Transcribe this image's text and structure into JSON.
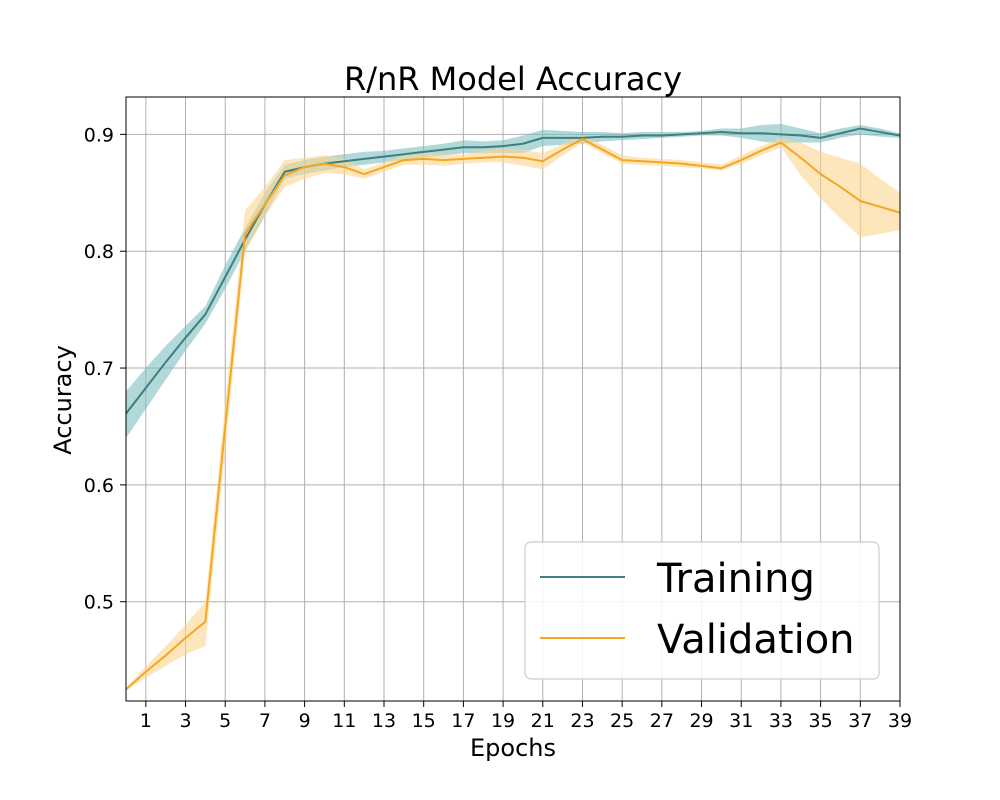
{
  "chart_data": {
    "type": "line",
    "title": "R/nR Model Accuracy",
    "xlabel": "Epochs",
    "ylabel": "Accuracy",
    "xlim": [
      0,
      39
    ],
    "ylim": [
      0.415,
      0.932
    ],
    "xticks": [
      1,
      3,
      5,
      7,
      9,
      11,
      13,
      15,
      17,
      19,
      21,
      23,
      25,
      27,
      29,
      31,
      33,
      35,
      37,
      39
    ],
    "yticks": [
      0.5,
      0.6,
      0.7,
      0.8,
      0.9
    ],
    "grid": true,
    "legend_position": "lower-right",
    "x": [
      0,
      1,
      2,
      3,
      4,
      5,
      6,
      7,
      8,
      9,
      10,
      11,
      12,
      13,
      14,
      15,
      16,
      17,
      18,
      19,
      20,
      21,
      22,
      23,
      24,
      25,
      26,
      27,
      28,
      29,
      30,
      31,
      32,
      33,
      34,
      35,
      36,
      37,
      38,
      39
    ],
    "series": [
      {
        "name": "Training",
        "color": "#3f7f7f",
        "band_color": "#7fbfbf",
        "values": [
          0.661,
          0.683,
          0.705,
          0.726,
          0.746,
          0.778,
          0.81,
          0.84,
          0.868,
          0.872,
          0.875,
          0.877,
          0.879,
          0.881,
          0.883,
          0.885,
          0.887,
          0.889,
          0.889,
          0.89,
          0.892,
          0.897,
          0.897,
          0.897,
          0.898,
          0.898,
          0.899,
          0.899,
          0.9,
          0.901,
          0.902,
          0.901,
          0.901,
          0.9,
          0.899,
          0.897,
          0.901,
          0.905,
          0.902,
          0.899
        ],
        "lower": [
          0.64,
          0.665,
          0.69,
          0.715,
          0.738,
          0.768,
          0.8,
          0.83,
          0.862,
          0.866,
          0.869,
          0.872,
          0.874,
          0.876,
          0.878,
          0.88,
          0.882,
          0.884,
          0.884,
          0.884,
          0.884,
          0.89,
          0.891,
          0.892,
          0.894,
          0.895,
          0.896,
          0.897,
          0.898,
          0.899,
          0.899,
          0.897,
          0.894,
          0.892,
          0.893,
          0.893,
          0.897,
          0.9,
          0.898,
          0.897
        ],
        "upper": [
          0.68,
          0.7,
          0.719,
          0.736,
          0.753,
          0.788,
          0.82,
          0.85,
          0.874,
          0.878,
          0.881,
          0.883,
          0.885,
          0.886,
          0.888,
          0.89,
          0.892,
          0.895,
          0.894,
          0.895,
          0.899,
          0.904,
          0.903,
          0.902,
          0.902,
          0.901,
          0.902,
          0.902,
          0.902,
          0.903,
          0.905,
          0.905,
          0.908,
          0.909,
          0.905,
          0.901,
          0.905,
          0.908,
          0.905,
          0.901
        ]
      },
      {
        "name": "Validation",
        "color": "#f5a623",
        "band_color": "#fcd590",
        "values": [
          0.425,
          0.44,
          0.454,
          0.469,
          0.483,
          0.65,
          0.815,
          0.84,
          0.865,
          0.872,
          0.875,
          0.872,
          0.866,
          0.872,
          0.878,
          0.879,
          0.878,
          0.879,
          0.88,
          0.881,
          0.88,
          0.877,
          0.887,
          0.896,
          0.887,
          0.878,
          0.877,
          0.876,
          0.875,
          0.873,
          0.871,
          0.878,
          0.886,
          0.893,
          0.88,
          0.866,
          0.855,
          0.843,
          0.838,
          0.833
        ],
        "lower": [
          0.424,
          0.435,
          0.445,
          0.455,
          0.462,
          0.63,
          0.8,
          0.83,
          0.855,
          0.862,
          0.867,
          0.866,
          0.862,
          0.868,
          0.874,
          0.874,
          0.873,
          0.875,
          0.876,
          0.876,
          0.873,
          0.87,
          0.882,
          0.893,
          0.884,
          0.875,
          0.874,
          0.873,
          0.872,
          0.871,
          0.869,
          0.875,
          0.882,
          0.889,
          0.865,
          0.845,
          0.828,
          0.812,
          0.815,
          0.818
        ],
        "upper": [
          0.426,
          0.445,
          0.462,
          0.48,
          0.5,
          0.67,
          0.835,
          0.855,
          0.878,
          0.88,
          0.882,
          0.879,
          0.87,
          0.876,
          0.882,
          0.884,
          0.883,
          0.883,
          0.886,
          0.888,
          0.887,
          0.884,
          0.892,
          0.899,
          0.891,
          0.882,
          0.88,
          0.879,
          0.878,
          0.876,
          0.874,
          0.882,
          0.89,
          0.897,
          0.893,
          0.885,
          0.88,
          0.875,
          0.862,
          0.85
        ]
      }
    ]
  }
}
